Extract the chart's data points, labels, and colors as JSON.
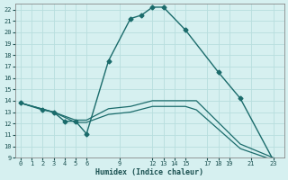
{
  "xlabel": "Humidex (Indice chaleur)",
  "bg_color": "#d6f0f0",
  "grid_color": "#b8dede",
  "line_color": "#1a6b6b",
  "xtick_labels": [
    "0",
    "1",
    "2",
    "3",
    "4",
    "5",
    "6",
    "9",
    "12",
    "13",
    "14",
    "15",
    "17",
    "18",
    "19",
    "21",
    "23"
  ],
  "ytick_labels": [
    "9",
    "10",
    "11",
    "12",
    "13",
    "14",
    "15",
    "16",
    "17",
    "18",
    "19",
    "20",
    "21",
    "22"
  ],
  "ylim": [
    9,
    22.5
  ],
  "lines": [
    {
      "xi": [
        0,
        2,
        3,
        4,
        5,
        6,
        8,
        10,
        11,
        12,
        13,
        15,
        18,
        20,
        23
      ],
      "y": [
        13.8,
        13.2,
        13.0,
        12.2,
        12.2,
        11.1,
        17.5,
        21.2,
        21.5,
        22.2,
        22.2,
        20.2,
        16.5,
        14.2,
        8.8
      ],
      "marker": "D",
      "markersize": 2.5,
      "linewidth": 1.0
    },
    {
      "xi": [
        0,
        3,
        5,
        6,
        8,
        10,
        12,
        15,
        16,
        20,
        23
      ],
      "y": [
        13.8,
        13.0,
        12.3,
        12.3,
        13.3,
        13.5,
        14.0,
        14.0,
        14.0,
        10.2,
        9.0
      ],
      "marker": null,
      "markersize": 0,
      "linewidth": 0.9
    },
    {
      "xi": [
        0,
        3,
        5,
        6,
        8,
        10,
        12,
        15,
        16,
        20,
        23
      ],
      "y": [
        13.8,
        13.0,
        12.1,
        12.1,
        12.8,
        13.0,
        13.5,
        13.5,
        13.2,
        9.8,
        8.8
      ],
      "marker": null,
      "markersize": 0,
      "linewidth": 0.9
    }
  ]
}
